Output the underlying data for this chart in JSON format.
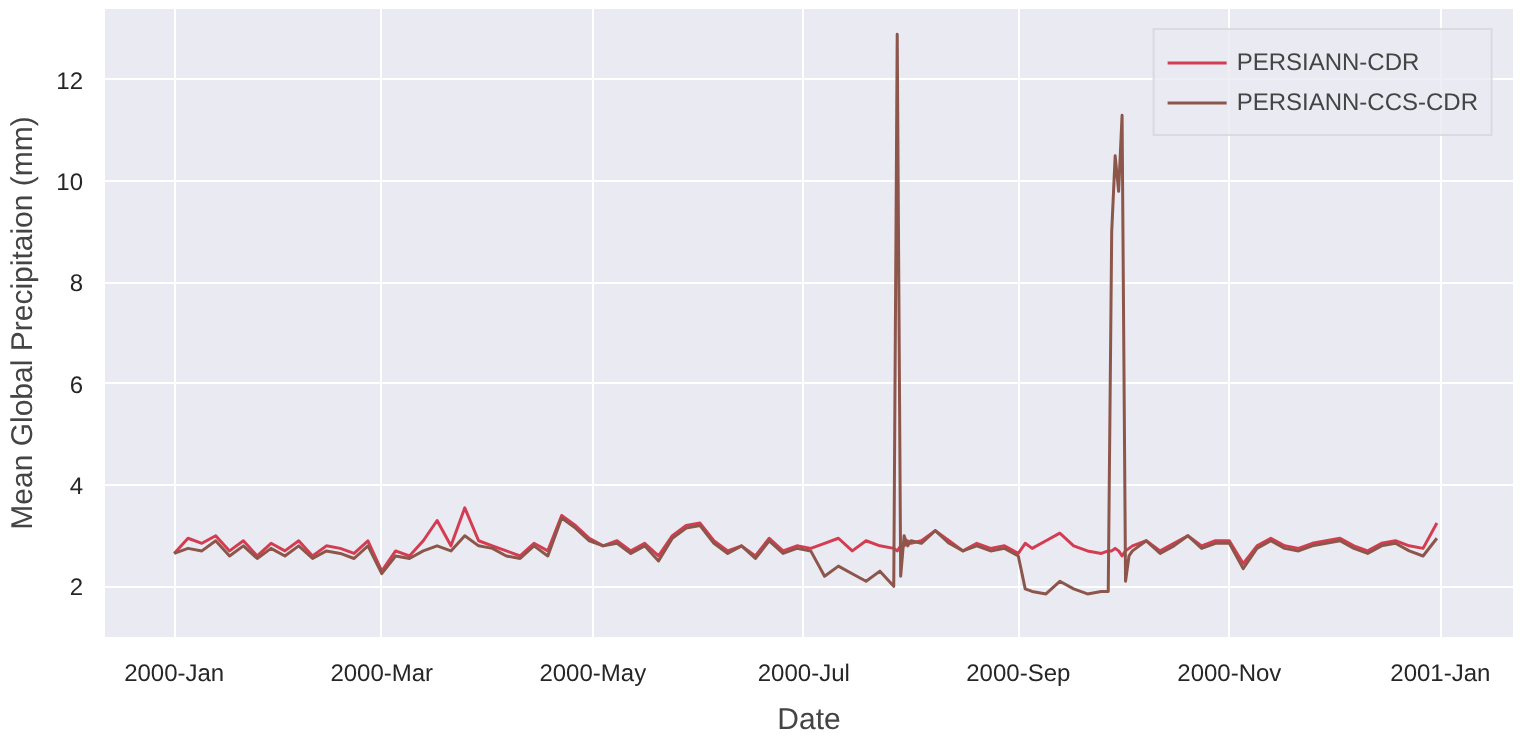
{
  "chart_data": {
    "type": "line",
    "xlabel": "Date",
    "ylabel": "Mean Global Precipitaion (mm)",
    "x": [
      "2000-01-01",
      "2000-01-05",
      "2000-01-09",
      "2000-01-13",
      "2000-01-17",
      "2000-01-21",
      "2000-01-25",
      "2000-01-29",
      "2000-02-02",
      "2000-02-06",
      "2000-02-10",
      "2000-02-14",
      "2000-02-18",
      "2000-02-22",
      "2000-02-26",
      "2000-03-01",
      "2000-03-05",
      "2000-03-09",
      "2000-03-13",
      "2000-03-17",
      "2000-03-21",
      "2000-03-25",
      "2000-03-29",
      "2000-04-02",
      "2000-04-06",
      "2000-04-10",
      "2000-04-14",
      "2000-04-18",
      "2000-04-22",
      "2000-04-26",
      "2000-04-30",
      "2000-05-04",
      "2000-05-08",
      "2000-05-12",
      "2000-05-16",
      "2000-05-20",
      "2000-05-24",
      "2000-05-28",
      "2000-06-01",
      "2000-06-05",
      "2000-06-09",
      "2000-06-13",
      "2000-06-17",
      "2000-06-21",
      "2000-06-25",
      "2000-06-29",
      "2000-07-03",
      "2000-07-07",
      "2000-07-11",
      "2000-07-15",
      "2000-07-19",
      "2000-07-23",
      "2000-07-27",
      "2000-07-28",
      "2000-07-29",
      "2000-07-30",
      "2000-07-31",
      "2000-08-01",
      "2000-08-04",
      "2000-08-08",
      "2000-08-12",
      "2000-08-16",
      "2000-08-20",
      "2000-08-24",
      "2000-08-28",
      "2000-09-01",
      "2000-09-03",
      "2000-09-05",
      "2000-09-09",
      "2000-09-13",
      "2000-09-17",
      "2000-09-21",
      "2000-09-25",
      "2000-09-27",
      "2000-09-28",
      "2000-09-29",
      "2000-09-30",
      "2000-10-01",
      "2000-10-02",
      "2000-10-03",
      "2000-10-04",
      "2000-10-08",
      "2000-10-12",
      "2000-10-16",
      "2000-10-20",
      "2000-10-24",
      "2000-10-28",
      "2000-11-01",
      "2000-11-05",
      "2000-11-09",
      "2000-11-13",
      "2000-11-17",
      "2000-11-21",
      "2000-11-25",
      "2000-11-29",
      "2000-12-03",
      "2000-12-07",
      "2000-12-11",
      "2000-12-15",
      "2000-12-19",
      "2000-12-23",
      "2000-12-27",
      "2000-12-31"
    ],
    "series": [
      {
        "name": "PERSIANN-CDR",
        "color": "#d43d51",
        "values": [
          2.65,
          2.95,
          2.85,
          3.0,
          2.7,
          2.9,
          2.6,
          2.85,
          2.7,
          2.9,
          2.6,
          2.8,
          2.75,
          2.65,
          2.9,
          2.3,
          2.7,
          2.6,
          2.9,
          3.3,
          2.8,
          3.55,
          2.9,
          2.8,
          2.7,
          2.6,
          2.85,
          2.7,
          3.4,
          3.2,
          2.95,
          2.8,
          2.9,
          2.7,
          2.85,
          2.6,
          3.0,
          3.2,
          3.25,
          2.9,
          2.7,
          2.8,
          2.6,
          2.95,
          2.7,
          2.8,
          2.75,
          2.85,
          2.95,
          2.7,
          2.9,
          2.8,
          2.75,
          2.7,
          2.8,
          2.8,
          2.9,
          2.85,
          2.9,
          3.1,
          2.9,
          2.7,
          2.85,
          2.75,
          2.8,
          2.65,
          2.85,
          2.75,
          2.9,
          3.05,
          2.8,
          2.7,
          2.65,
          2.7,
          2.7,
          2.75,
          2.7,
          2.6,
          2.7,
          2.75,
          2.8,
          2.9,
          2.7,
          2.85,
          3.0,
          2.8,
          2.9,
          2.9,
          2.45,
          2.8,
          2.95,
          2.8,
          2.75,
          2.85,
          2.9,
          2.95,
          2.8,
          2.7,
          2.85,
          2.9,
          2.8,
          2.75,
          3.25
        ]
      },
      {
        "name": "PERSIANN-CCS-CDR",
        "color": "#8c564b",
        "values": [
          2.65,
          2.75,
          2.7,
          2.9,
          2.6,
          2.8,
          2.55,
          2.75,
          2.6,
          2.8,
          2.55,
          2.7,
          2.65,
          2.55,
          2.8,
          2.25,
          2.6,
          2.55,
          2.7,
          2.8,
          2.7,
          3.0,
          2.8,
          2.75,
          2.6,
          2.55,
          2.8,
          2.6,
          3.35,
          3.15,
          2.9,
          2.8,
          2.85,
          2.65,
          2.8,
          2.5,
          2.95,
          3.15,
          3.2,
          2.85,
          2.65,
          2.8,
          2.55,
          2.9,
          2.65,
          2.75,
          2.7,
          2.2,
          2.4,
          2.25,
          2.1,
          2.3,
          2.0,
          12.9,
          2.2,
          3.0,
          2.8,
          2.9,
          2.85,
          3.1,
          2.85,
          2.7,
          2.8,
          2.7,
          2.75,
          2.6,
          1.95,
          1.9,
          1.85,
          2.1,
          1.95,
          1.85,
          1.9,
          1.9,
          9.0,
          10.5,
          9.8,
          11.3,
          2.1,
          2.6,
          2.7,
          2.9,
          2.65,
          2.8,
          3.0,
          2.75,
          2.85,
          2.85,
          2.35,
          2.75,
          2.9,
          2.75,
          2.7,
          2.8,
          2.85,
          2.9,
          2.75,
          2.65,
          2.8,
          2.85,
          2.7,
          2.6,
          2.95
        ]
      }
    ],
    "xlim": [
      "1999-12-12",
      "2001-01-22"
    ],
    "xticks": [
      {
        "value": "2000-01-01",
        "label": "2000-Jan"
      },
      {
        "value": "2000-03-01",
        "label": "2000-Mar"
      },
      {
        "value": "2000-05-01",
        "label": "2000-May"
      },
      {
        "value": "2000-07-01",
        "label": "2000-Jul"
      },
      {
        "value": "2000-09-01",
        "label": "2000-Sep"
      },
      {
        "value": "2000-11-01",
        "label": "2000-Nov"
      },
      {
        "value": "2001-01-01",
        "label": "2001-Jan"
      }
    ],
    "ylim": [
      1.0,
      13.4
    ],
    "yticks": [
      2,
      4,
      6,
      8,
      10,
      12
    ],
    "grid": true,
    "legend": "top right",
    "line_style": "solid"
  }
}
